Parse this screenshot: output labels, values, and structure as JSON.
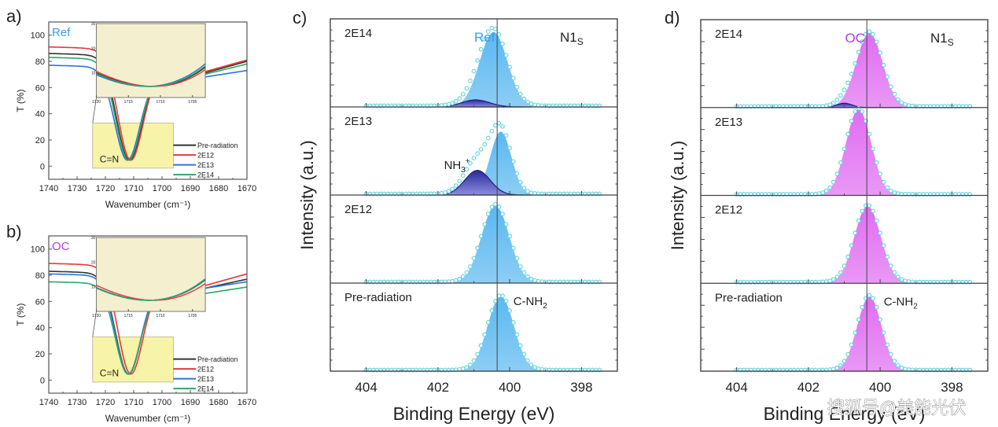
{
  "figure_labels": {
    "a": "a)",
    "b": "b)",
    "c": "c)",
    "d": "d)"
  },
  "chart_data": [
    {
      "id": "a",
      "type": "line",
      "title": "",
      "sample_label": "Ref",
      "sample_color": "#3d9be9",
      "xlabel": "Wavenumber (cm⁻¹)",
      "ylabel": "T (%)",
      "xlim": [
        1740,
        1670
      ],
      "ylim": [
        -10,
        110
      ],
      "xticks": [
        1740,
        1730,
        1720,
        1710,
        1700,
        1690,
        1680,
        1670
      ],
      "yticks": [
        0,
        20,
        40,
        60,
        80,
        100
      ],
      "annotation": "C=N",
      "legend_position": "bottom-right",
      "series": [
        {
          "name": "Pre-radiation",
          "color": "#333333",
          "start": 86,
          "min_x": 1711.5,
          "min_y": 4.5,
          "end": 80,
          "shoulder": 71
        },
        {
          "name": "2E12",
          "color": "#e8383a",
          "start": 91,
          "min_x": 1711.0,
          "min_y": 4.5,
          "end": 81,
          "shoulder": 72
        },
        {
          "name": "2E13",
          "color": "#2f74d4",
          "start": 77,
          "min_x": 1712.2,
          "min_y": 4.5,
          "end": 73,
          "shoulder": 68
        },
        {
          "name": "2E14",
          "color": "#2ea86a",
          "start": 83,
          "min_x": 1711.8,
          "min_y": 4.5,
          "end": 78,
          "shoulder": 70
        }
      ],
      "inset": {
        "xlim": [
          1720,
          1703
        ],
        "ylim": [
          0,
          30
        ],
        "xticks": [
          1720,
          1715,
          1710,
          1705
        ],
        "yticks": [
          10,
          20,
          30
        ]
      }
    },
    {
      "id": "b",
      "type": "line",
      "title": "",
      "sample_label": "OC",
      "sample_color": "#b23ee8",
      "xlabel": "Wavenumber (cm⁻¹)",
      "ylabel": "T (%)",
      "xlim": [
        1740,
        1670
      ],
      "ylim": [
        -10,
        110
      ],
      "xticks": [
        1740,
        1730,
        1720,
        1710,
        1700,
        1690,
        1680,
        1670
      ],
      "yticks": [
        0,
        20,
        40,
        60,
        80,
        100
      ],
      "annotation": "C=N",
      "legend_position": "bottom-right",
      "series": [
        {
          "name": "Pre-radiation",
          "color": "#333333",
          "start": 83,
          "min_x": 1711.8,
          "min_y": 4.5,
          "end": 77,
          "shoulder": 70
        },
        {
          "name": "2E12",
          "color": "#e8383a",
          "start": 89,
          "min_x": 1711.0,
          "min_y": 4.5,
          "end": 81,
          "shoulder": 72
        },
        {
          "name": "2E13",
          "color": "#2f74d4",
          "start": 81,
          "min_x": 1711.9,
          "min_y": 4.5,
          "end": 75,
          "shoulder": 70
        },
        {
          "name": "2E14",
          "color": "#2ea86a",
          "start": 75,
          "min_x": 1712.0,
          "min_y": 4.5,
          "end": 71,
          "shoulder": 66
        }
      ],
      "inset": {
        "xlim": [
          1720,
          1703
        ],
        "ylim": [
          0,
          30
        ],
        "xticks": [
          1720,
          1715,
          1710,
          1705
        ],
        "yticks": [
          10,
          20,
          30
        ]
      }
    },
    {
      "id": "c",
      "type": "area",
      "sample_label": "Ref",
      "sample_color": "#3d9be9",
      "fill_color": "#5bb8f0",
      "minor_fill_color": "#3a3aa8",
      "spectrum_label": "N1",
      "spectrum_sub": "S",
      "xlabel": "Binding Energy (eV)",
      "ylabel": "Intensity (a.u.)",
      "xlim": [
        405.0,
        397.0
      ],
      "xticks": [
        404,
        402,
        400,
        398
      ],
      "reference_line": 400.35,
      "panels": [
        {
          "label": "2E14",
          "main_center": 400.45,
          "main_height": 0.85,
          "main_width": 0.55,
          "minor_center": 400.95,
          "minor_height": 0.08,
          "minor_width": 0.55,
          "annotation": ""
        },
        {
          "label": "2E13",
          "main_center": 400.25,
          "main_height": 0.72,
          "main_width": 0.42,
          "minor_center": 400.9,
          "minor_height": 0.28,
          "minor_width": 0.5,
          "annotation": "NH3+"
        },
        {
          "label": "2E12",
          "main_center": 400.4,
          "main_height": 0.88,
          "main_width": 0.55,
          "minor_center": 0,
          "minor_height": 0,
          "minor_width": 1,
          "annotation": ""
        },
        {
          "label": "Pre-radiation",
          "main_center": 400.25,
          "main_height": 0.85,
          "main_width": 0.52,
          "minor_center": 0,
          "minor_height": 0,
          "minor_width": 1,
          "annotation": "C-NH2"
        }
      ]
    },
    {
      "id": "d",
      "type": "area",
      "sample_label": "OC",
      "sample_color": "#b23ee8",
      "fill_color": "#e06cf2",
      "minor_fill_color": "#3a3aa8",
      "spectrum_label": "N1",
      "spectrum_sub": "S",
      "xlabel": "Binding Energy (eV)",
      "ylabel": "Intensity (a.u.)",
      "xlim": [
        405.0,
        397.0
      ],
      "xticks": [
        404,
        402,
        400,
        398
      ],
      "reference_line": 400.37,
      "panels": [
        {
          "label": "2E14",
          "main_center": 400.3,
          "main_height": 0.85,
          "main_width": 0.52,
          "minor_center": 401.0,
          "minor_height": 0.05,
          "minor_width": 0.3,
          "annotation": ""
        },
        {
          "label": "2E13",
          "main_center": 400.6,
          "main_height": 0.98,
          "main_width": 0.5,
          "minor_center": 0,
          "minor_height": 0,
          "minor_width": 1,
          "annotation": ""
        },
        {
          "label": "2E12",
          "main_center": 400.35,
          "main_height": 0.88,
          "main_width": 0.52,
          "minor_center": 0,
          "minor_height": 0,
          "minor_width": 1,
          "annotation": ""
        },
        {
          "label": "Pre-radiation",
          "main_center": 400.3,
          "main_height": 0.85,
          "main_width": 0.48,
          "minor_center": 0,
          "minor_height": 0,
          "minor_width": 1,
          "annotation": "C-NH2"
        }
      ]
    }
  ],
  "watermark": "搜狐号@美能光伏"
}
